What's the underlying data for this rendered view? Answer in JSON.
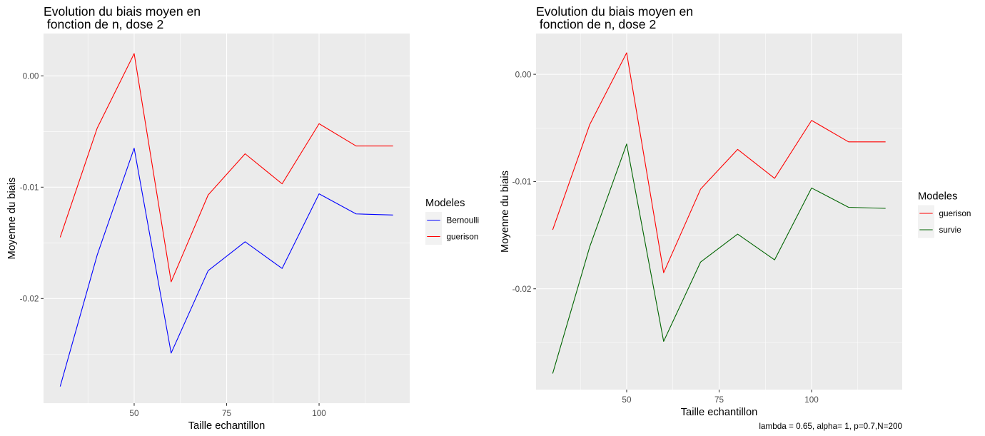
{
  "chart_data": [
    {
      "type": "line",
      "title": [
        "Evolution du biais moyen en",
        " fonction de n, dose 2"
      ],
      "xlabel": "Taille echantillon",
      "ylabel": "Moyenne du biais",
      "x": [
        30,
        40,
        50,
        60,
        70,
        80,
        90,
        100,
        110,
        120
      ],
      "xlim": [
        25.5,
        124.5
      ],
      "ylim": [
        -0.0294,
        0.0038
      ],
      "xticks": [
        50,
        75,
        100
      ],
      "xtick_labels": [
        "50",
        "75",
        "100"
      ],
      "yticks": [
        0,
        -0.01,
        -0.02
      ],
      "ytick_labels": [
        "0.00",
        "-0.01",
        "-0.02"
      ],
      "grid": true,
      "legend": {
        "title": "Modeles",
        "position": "right"
      },
      "series": [
        {
          "name": "Bernoulli",
          "color": "#0000FF",
          "values": [
            -0.0279,
            -0.0161,
            -0.0065,
            -0.0249,
            -0.0175,
            -0.0149,
            -0.0173,
            -0.0106,
            -0.0124,
            -0.0125
          ]
        },
        {
          "name": "guerison",
          "color": "#FF0000",
          "values": [
            -0.0145,
            -0.0047,
            0.002,
            -0.0185,
            -0.0107,
            -0.007,
            -0.0097,
            -0.0043,
            -0.0063,
            -0.0063
          ]
        }
      ]
    },
    {
      "type": "line",
      "title": [
        "Evolution du biais moyen en",
        " fonction de n, dose 2"
      ],
      "xlabel": "Taille echantillon",
      "ylabel": "Moyenne du biais",
      "x": [
        30,
        40,
        50,
        60,
        70,
        80,
        90,
        100,
        110,
        120
      ],
      "xlim": [
        25.5,
        124.5
      ],
      "ylim": [
        -0.0294,
        0.0038
      ],
      "xticks": [
        50,
        75,
        100
      ],
      "xtick_labels": [
        "50",
        "75",
        "100"
      ],
      "yticks": [
        0,
        -0.01,
        -0.02
      ],
      "ytick_labels": [
        "0.00",
        "-0.01",
        "-0.02"
      ],
      "grid": true,
      "legend": {
        "title": "Modeles",
        "position": "right"
      },
      "series": [
        {
          "name": "guerison",
          "color": "#FF0000",
          "values": [
            -0.0145,
            -0.0047,
            0.002,
            -0.0185,
            -0.0107,
            -0.007,
            -0.0097,
            -0.0043,
            -0.0063,
            -0.0063
          ]
        },
        {
          "name": "survie",
          "color": "#006400",
          "values": [
            -0.0279,
            -0.0161,
            -0.0065,
            -0.0249,
            -0.0175,
            -0.0149,
            -0.0173,
            -0.0106,
            -0.0124,
            -0.0125
          ]
        }
      ],
      "caption": "lambda = 0.65, alpha= 1, p=0.7,N=200"
    }
  ]
}
